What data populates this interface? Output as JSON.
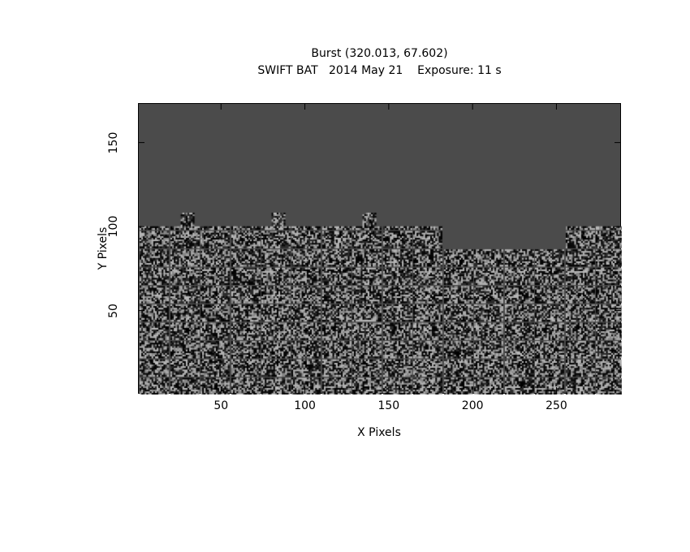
{
  "chart_data": {
    "type": "heatmap",
    "title": "Burst (320.013, 67.602)",
    "subtitle": "SWIFT BAT   2014 May 21    Exposure: 11 s",
    "xlabel": "X Pixels",
    "ylabel": "Y Pixels",
    "xlim": [
      0.5,
      288.5
    ],
    "ylim": [
      0.5,
      173.5
    ],
    "xticks": [
      50,
      100,
      150,
      200,
      250
    ],
    "yticks": [
      50,
      100,
      150
    ],
    "grid": false,
    "colors": {
      "background": "#4b4b4b",
      "low": "#000000",
      "high": "#b8b8b8"
    }
  }
}
